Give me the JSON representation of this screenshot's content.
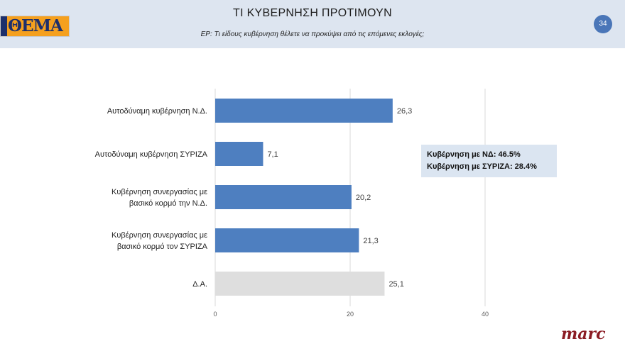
{
  "header": {
    "logo_text": "ΘΕΜΑ",
    "title": "ΤΙ ΚΥΒΕΡΝΗΣΗ ΠΡΟΤΙΜΟΥΝ",
    "subtitle": "ΕΡ: Τι είδους κυβέρνηση θέλετε να προκύψει από τις επόμενες εκλογές;",
    "page_number": "34"
  },
  "colors": {
    "bar": "#4e7fc0",
    "bar_da": "#dedede",
    "grid": "#d9d9d9",
    "header_bg": "#dde5f0"
  },
  "chart_data": {
    "type": "bar",
    "orientation": "horizontal",
    "categories": [
      [
        "Αυτοδύναμη κυβέρνηση Ν.Δ."
      ],
      [
        "Αυτοδύναμη κυβέρνηση ΣΥΡΙΖΑ"
      ],
      [
        "Κυβέρνηση συνεργασίας με",
        "βασικό κορμό την Ν.Δ."
      ],
      [
        "Κυβέρνηση συνεργασίας με",
        "βασικό κορμό τον ΣΥΡΙΖΑ"
      ],
      [
        "Δ.Α."
      ]
    ],
    "values": [
      26.3,
      7.1,
      20.2,
      21.3,
      25.1
    ],
    "value_labels": [
      "26,3",
      "7,1",
      "20,2",
      "21,3",
      "25,1"
    ],
    "highlight": [
      false,
      false,
      false,
      false,
      true
    ],
    "xlim": [
      0,
      40
    ],
    "xticks": [
      0,
      20,
      40
    ],
    "grid": true
  },
  "callout": {
    "lines": [
      "Κυβέρνηση με ΝΔ: 46.5%",
      "Κυβέρνηση με ΣΥΡΙΖΑ: 28.4%"
    ]
  },
  "footer": {
    "brand": "marc"
  }
}
